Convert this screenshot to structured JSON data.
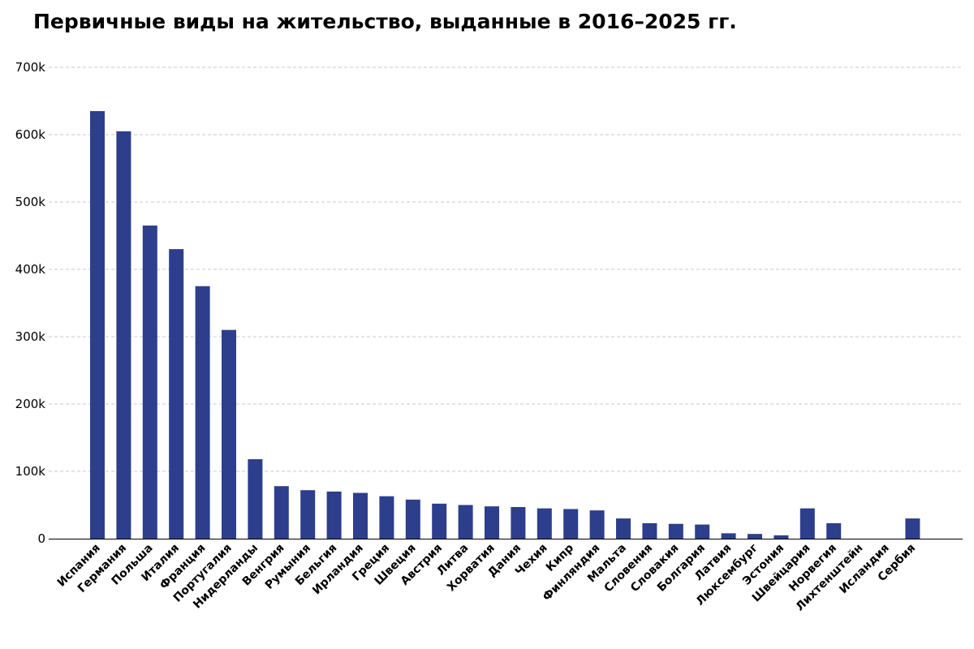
{
  "chart_data": {
    "type": "bar",
    "title": "Первичные виды на жительство, выданные в 2016–2025 гг.",
    "categories": [
      "Испания",
      "Германия",
      "Польша",
      "Италия",
      "Франция",
      "Португалия",
      "Нидерланды",
      "Венгрия",
      "Румыния",
      "Бельгия",
      "Ирландия",
      "Греция",
      "Швеция",
      "Австрия",
      "Литва",
      "Хорватия",
      "Дания",
      "Чехия",
      "Кипр",
      "Финляндия",
      "Мальта",
      "Словения",
      "Словакия",
      "Болгария",
      "Латвия",
      "Люксембург",
      "Эстония",
      "Швейцария",
      "Норвегия",
      "Лихтенштейн",
      "Исландия",
      "Сербия"
    ],
    "values": [
      635000,
      605000,
      465000,
      430000,
      375000,
      310000,
      118000,
      78000,
      72000,
      70000,
      68000,
      63000,
      58000,
      52000,
      50000,
      48000,
      47000,
      45000,
      44000,
      42000,
      30000,
      23000,
      22000,
      21000,
      8000,
      7000,
      5000,
      45000,
      23000,
      0,
      0,
      30000
    ],
    "ylim": [
      0,
      700000
    ],
    "yticks": [
      0,
      100000,
      200000,
      300000,
      400000,
      500000,
      600000,
      700000
    ],
    "ytick_labels": [
      "0",
      "100k",
      "200k",
      "300k",
      "400k",
      "500k",
      "600k",
      "700k"
    ],
    "grid": true,
    "bar_color": "#2c3e8c"
  }
}
